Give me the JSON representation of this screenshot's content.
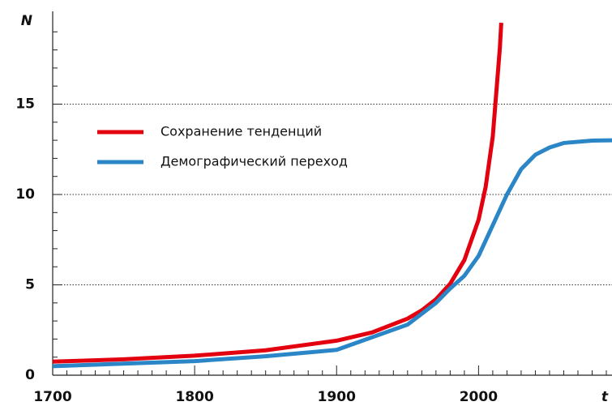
{
  "chart_data": {
    "type": "line",
    "x_axis_label": "t",
    "y_axis_label": "N",
    "xlim": [
      1700,
      2094
    ],
    "ylim": [
      0,
      20
    ],
    "xticks": [
      1700,
      1800,
      1900,
      2000
    ],
    "x_minor_ticks": [
      1710,
      1720,
      1730,
      1740,
      1750,
      1760,
      1770,
      1780,
      1790,
      1810,
      1820,
      1830,
      1840,
      1850,
      1860,
      1870,
      1880,
      1890,
      1910,
      1920,
      1930,
      1940,
      1950,
      1960,
      1970,
      1980,
      1990,
      2010,
      2020,
      2030,
      2040,
      2050,
      2060,
      2070,
      2080,
      2090
    ],
    "yticks": [
      0,
      5,
      10,
      15
    ],
    "y_minor_ticks": [
      1,
      2,
      3,
      4,
      6,
      7,
      8,
      9,
      11,
      12,
      13,
      14,
      16,
      17,
      18,
      19
    ],
    "grid_lines": [
      5,
      10,
      15
    ],
    "series": [
      {
        "name": "Сохранение тенденций",
        "color": "#e3000f",
        "x": [
          1700,
          1750,
          1800,
          1850,
          1900,
          1925,
          1950,
          1960,
          1970,
          1980,
          1990,
          2000,
          2005,
          2010,
          2015,
          2016
        ],
        "values": [
          0.75,
          0.88,
          1.08,
          1.38,
          1.91,
          2.37,
          3.13,
          3.59,
          4.2,
          5.06,
          6.37,
          8.6,
          10.42,
          13.2,
          18.1,
          19.5
        ]
      },
      {
        "name": "Демографический переход",
        "color": "#2a86c6",
        "x": [
          1700,
          1800,
          1850,
          1900,
          1950,
          1970,
          1980,
          1990,
          2000,
          2010,
          2020,
          2030,
          2040,
          2050,
          2060,
          2080,
          2094
        ],
        "values": [
          0.5,
          0.78,
          1.05,
          1.4,
          2.8,
          4.0,
          4.8,
          5.5,
          6.6,
          8.3,
          10.0,
          11.4,
          12.2,
          12.6,
          12.85,
          12.98,
          13.0
        ]
      }
    ]
  }
}
